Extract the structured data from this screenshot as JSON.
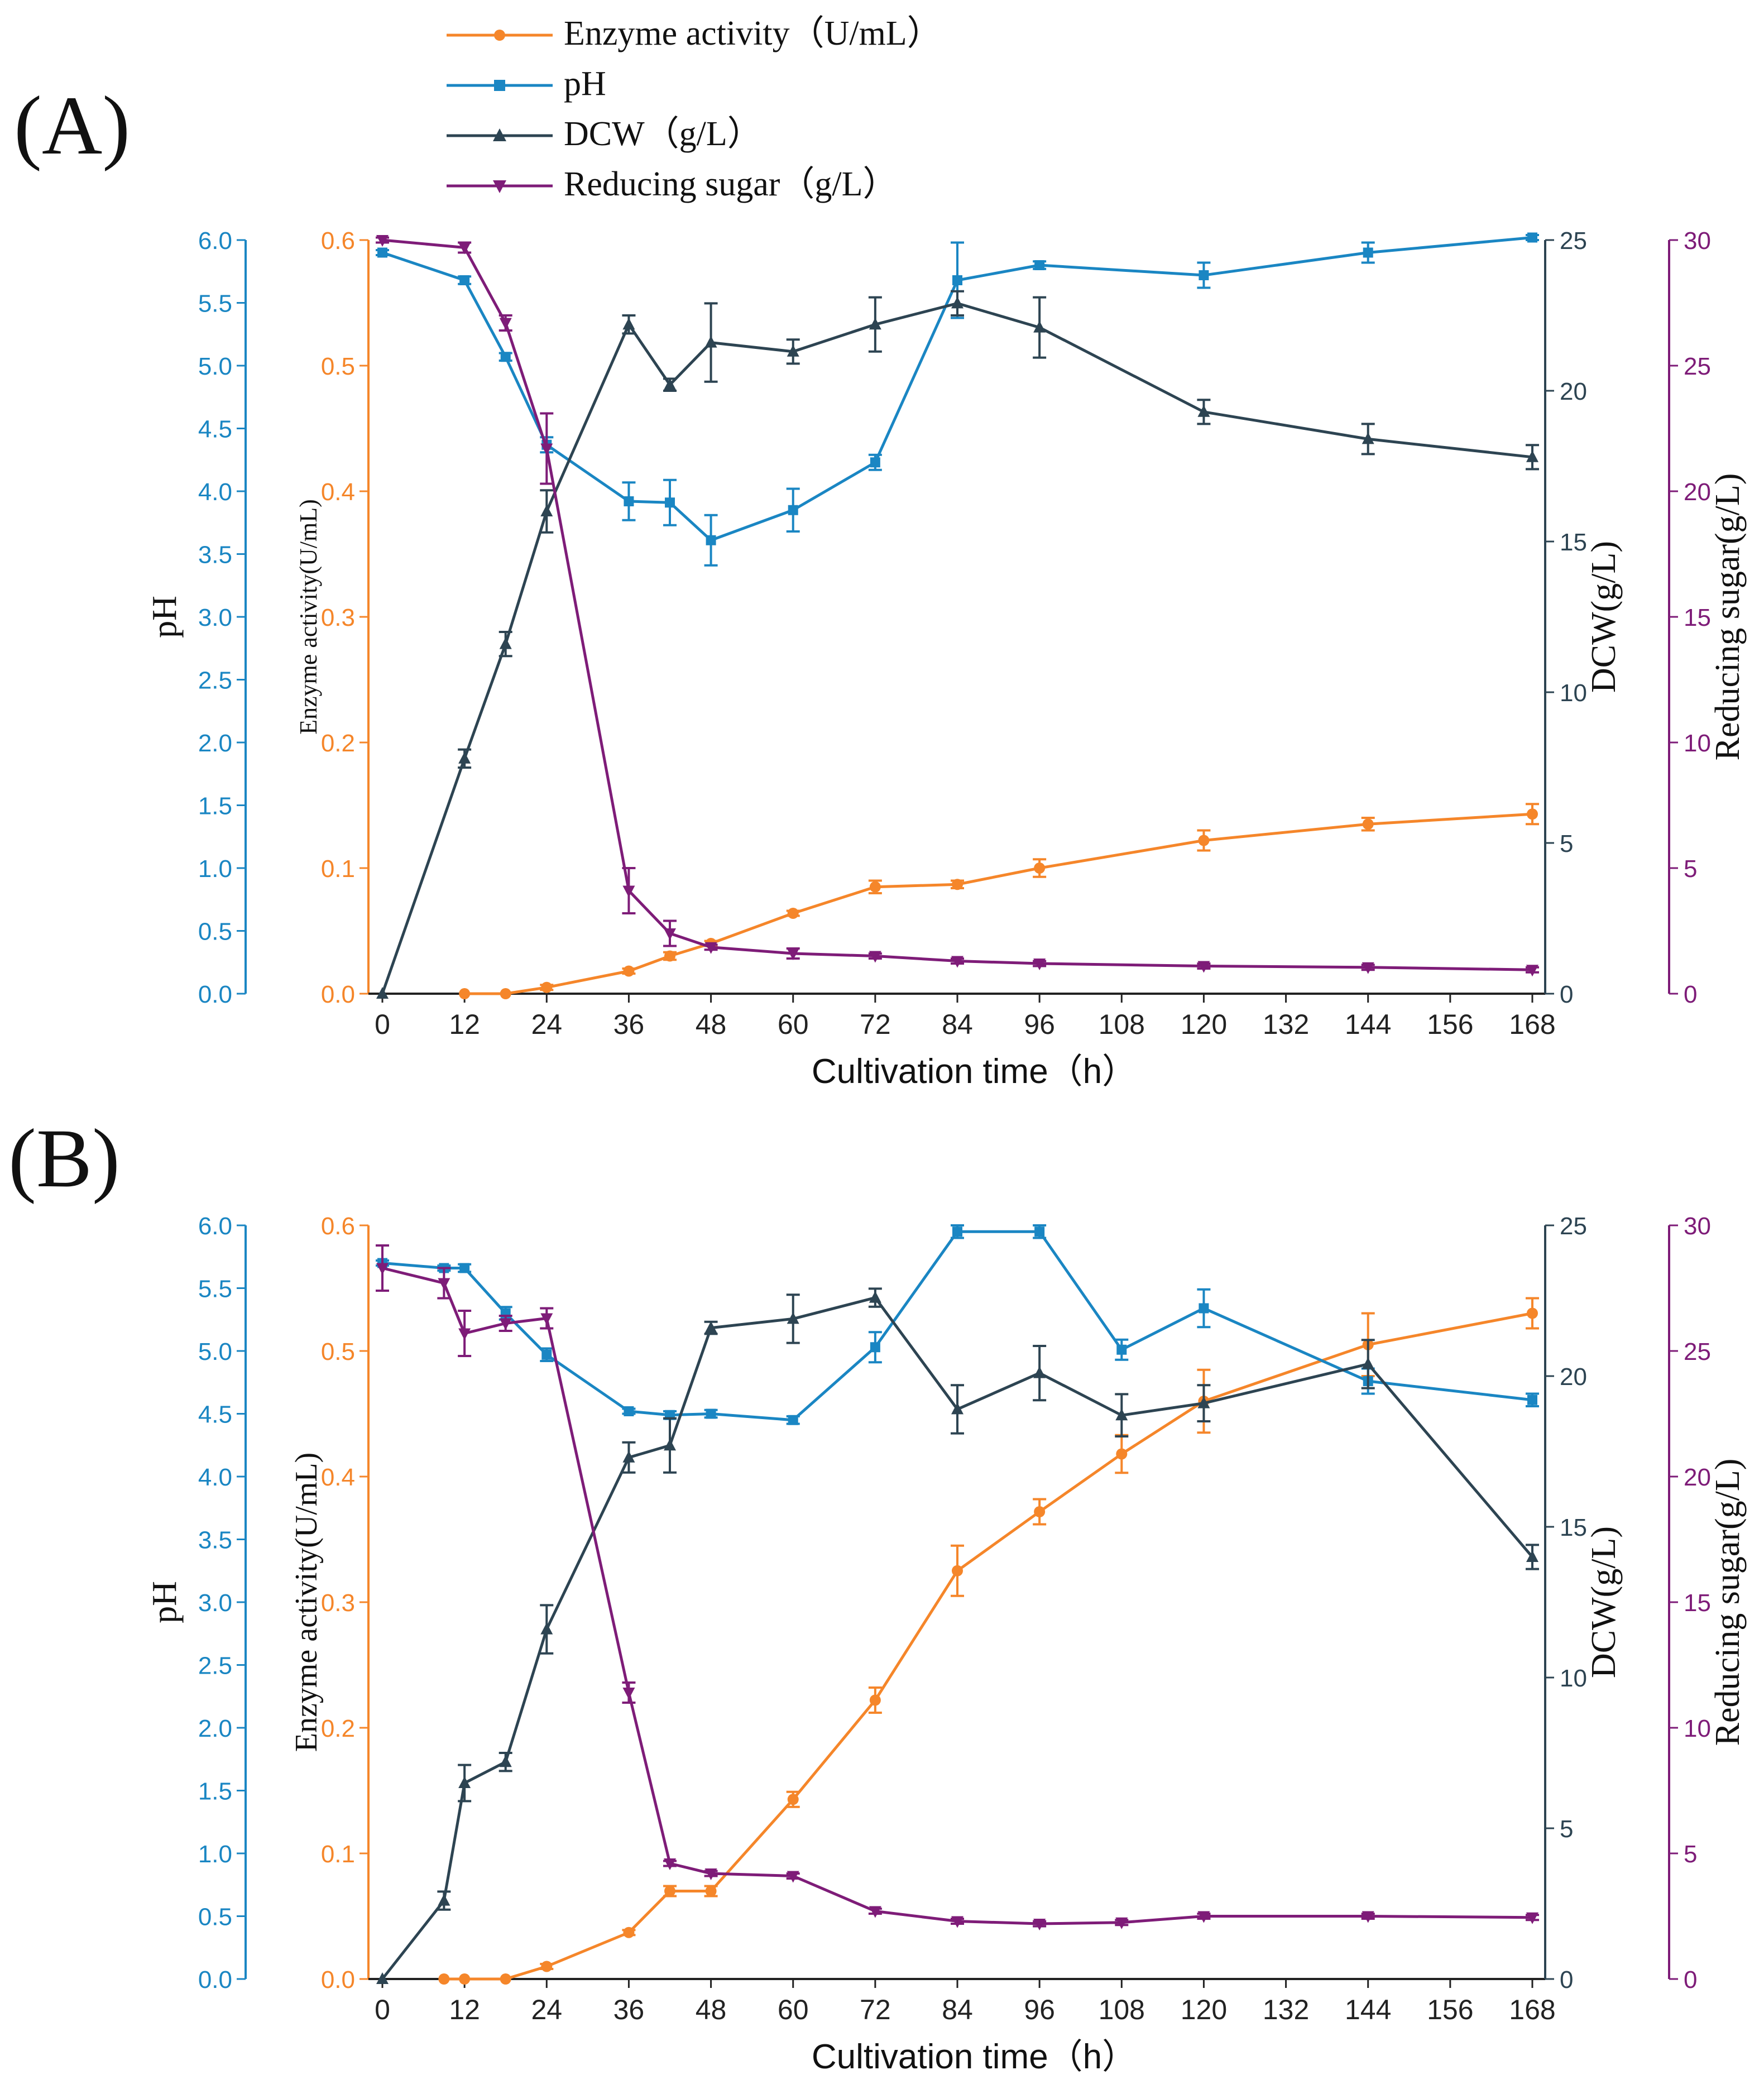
{
  "colors": {
    "enzyme": "#F5862A",
    "ph": "#1A86C3",
    "dcw": "#2D4452",
    "sugar": "#7E1C78"
  },
  "legend": {
    "enzyme": "Enzyme activity（U/mL）",
    "ph": "pH",
    "dcw": "DCW（g/L）",
    "sugar": "Reducing sugar（g/L）"
  },
  "chart_data": [
    {
      "panel_label": "(A)",
      "type": "line",
      "xlabel": "Cultivation time（h）",
      "xlim": [
        0,
        168
      ],
      "xticks": [
        0,
        12,
        24,
        36,
        48,
        60,
        72,
        84,
        96,
        108,
        120,
        132,
        144,
        156,
        168
      ],
      "axes": {
        "ph": {
          "label": "pH",
          "ylim": [
            0,
            6
          ],
          "ticks": [
            "0.0",
            "0.5",
            "1.0",
            "1.5",
            "2.0",
            "2.5",
            "3.0",
            "3.5",
            "4.0",
            "4.5",
            "5.0",
            "5.5",
            "6.0"
          ]
        },
        "enzyme": {
          "label": "Enzyme activity(U/mL)",
          "ylim": [
            0,
            0.6
          ],
          "ticks": [
            "0.0",
            "0.1",
            "0.2",
            "0.3",
            "0.4",
            "0.5",
            "0.6"
          ]
        },
        "dcw": {
          "label": "DCW(g/L)",
          "ylim": [
            0,
            25
          ],
          "ticks": [
            "0",
            "5",
            "10",
            "15",
            "20",
            "25"
          ]
        },
        "sugar": {
          "label": "Reducing sugar(g/L)",
          "ylim": [
            0,
            30
          ],
          "ticks": [
            "0",
            "5",
            "10",
            "15",
            "20",
            "25",
            "30"
          ]
        }
      },
      "series": [
        {
          "key": "enzyme",
          "name": "Enzyme activity",
          "marker": "circle",
          "x": [
            12,
            18,
            24,
            36,
            42,
            48,
            60,
            72,
            84,
            96,
            120,
            144,
            168
          ],
          "y": [
            0.0,
            0.0,
            0.005,
            0.018,
            0.03,
            0.04,
            0.064,
            0.085,
            0.087,
            0.1,
            0.122,
            0.135,
            0.143
          ],
          "err": [
            0,
            0,
            0.002,
            0.002,
            0.003,
            0.002,
            0.002,
            0.005,
            0.003,
            0.007,
            0.008,
            0.005,
            0.008
          ]
        },
        {
          "key": "ph",
          "name": "pH",
          "marker": "square",
          "x": [
            0,
            12,
            18,
            24,
            36,
            42,
            48,
            60,
            72,
            84,
            96,
            120,
            144,
            168
          ],
          "y": [
            5.9,
            5.68,
            5.07,
            4.37,
            3.92,
            3.91,
            3.61,
            3.85,
            4.23,
            5.68,
            5.8,
            5.72,
            5.9,
            6.02
          ],
          "err": [
            0.02,
            0.03,
            0.03,
            0.06,
            0.15,
            0.18,
            0.2,
            0.17,
            0.06,
            0.3,
            0.03,
            0.1,
            0.08,
            0.02
          ]
        },
        {
          "key": "dcw",
          "name": "DCW",
          "marker": "triangle",
          "x": [
            0,
            12,
            18,
            24,
            36,
            42,
            48,
            60,
            72,
            84,
            96,
            120,
            144,
            168
          ],
          "y": [
            0.0,
            7.8,
            11.6,
            16.0,
            22.2,
            20.2,
            21.6,
            21.3,
            22.2,
            22.9,
            22.1,
            19.3,
            18.4,
            17.8
          ],
          "err": [
            0,
            0.3,
            0.4,
            0.7,
            0.3,
            0.2,
            1.3,
            0.4,
            0.9,
            0.4,
            1.0,
            0.4,
            0.5,
            0.4
          ]
        },
        {
          "key": "sugar",
          "name": "Reducing sugar",
          "marker": "triangle-down",
          "x": [
            0,
            12,
            18,
            24,
            36,
            42,
            48,
            60,
            72,
            84,
            96,
            120,
            144,
            168
          ],
          "y": [
            30.0,
            29.7,
            26.7,
            21.7,
            4.1,
            2.4,
            1.85,
            1.6,
            1.5,
            1.3,
            1.2,
            1.1,
            1.05,
            0.95
          ],
          "err": [
            0.1,
            0.2,
            0.3,
            1.4,
            0.9,
            0.5,
            0.1,
            0.2,
            0.1,
            0.1,
            0.1,
            0.1,
            0.1,
            0.1
          ]
        }
      ]
    },
    {
      "panel_label": "(B)",
      "type": "line",
      "xlabel": "Cultivation time（h）",
      "xlim": [
        0,
        168
      ],
      "xticks": [
        0,
        12,
        24,
        36,
        48,
        60,
        72,
        84,
        96,
        108,
        120,
        132,
        144,
        156,
        168
      ],
      "axes": {
        "ph": {
          "label": "pH",
          "ylim": [
            0,
            6
          ],
          "ticks": [
            "0.0",
            "0.5",
            "1.0",
            "1.5",
            "2.0",
            "2.5",
            "3.0",
            "3.5",
            "4.0",
            "4.5",
            "5.0",
            "5.5",
            "6.0"
          ]
        },
        "enzyme": {
          "label": "Enzyme activity(U/mL)",
          "ylim": [
            0,
            0.6
          ],
          "ticks": [
            "0.0",
            "0.1",
            "0.2",
            "0.3",
            "0.4",
            "0.5",
            "0.6"
          ]
        },
        "dcw": {
          "label": "DCW(g/L)",
          "ylim": [
            0,
            25
          ],
          "ticks": [
            "0",
            "5",
            "10",
            "15",
            "20",
            "25"
          ]
        },
        "sugar": {
          "label": "Reducing sugar(g/L)",
          "ylim": [
            0,
            30
          ],
          "ticks": [
            "0",
            "5",
            "10",
            "15",
            "20",
            "25",
            "30"
          ]
        }
      },
      "series": [
        {
          "key": "enzyme",
          "name": "Enzyme activity",
          "marker": "circle",
          "x": [
            9,
            12,
            18,
            24,
            36,
            42,
            48,
            60,
            72,
            84,
            96,
            108,
            120,
            144,
            168
          ],
          "y": [
            0.0,
            0.0,
            0.0,
            0.01,
            0.037,
            0.07,
            0.07,
            0.143,
            0.222,
            0.325,
            0.372,
            0.418,
            0.46,
            0.505,
            0.53
          ],
          "err": [
            0,
            0,
            0,
            0.002,
            0.002,
            0.004,
            0.004,
            0.006,
            0.01,
            0.02,
            0.01,
            0.015,
            0.025,
            0.025,
            0.012
          ]
        },
        {
          "key": "ph",
          "name": "pH",
          "marker": "square",
          "x": [
            0,
            9,
            12,
            18,
            24,
            36,
            42,
            48,
            60,
            72,
            84,
            96,
            108,
            120,
            144,
            168
          ],
          "y": [
            5.7,
            5.66,
            5.66,
            5.3,
            4.97,
            4.52,
            4.49,
            4.5,
            4.45,
            5.03,
            5.95,
            5.95,
            5.01,
            5.34,
            4.76,
            4.61
          ],
          "err": [
            0.02,
            0.02,
            0.03,
            0.05,
            0.05,
            0.02,
            0.03,
            0.03,
            0.03,
            0.12,
            0.05,
            0.05,
            0.08,
            0.15,
            0.1,
            0.05
          ]
        },
        {
          "key": "dcw",
          "name": "DCW",
          "marker": "triangle",
          "x": [
            0,
            9,
            12,
            18,
            24,
            36,
            42,
            48,
            60,
            72,
            84,
            96,
            108,
            120,
            144,
            168
          ],
          "y": [
            0.0,
            2.6,
            6.5,
            7.2,
            11.6,
            17.3,
            17.7,
            21.6,
            21.9,
            22.6,
            18.9,
            20.1,
            18.7,
            19.1,
            20.4,
            14.0
          ],
          "err": [
            0,
            0.3,
            0.6,
            0.3,
            0.8,
            0.5,
            0.9,
            0.2,
            0.8,
            0.3,
            0.8,
            0.9,
            0.7,
            0.6,
            0.8,
            0.4
          ]
        },
        {
          "key": "sugar",
          "name": "Reducing sugar",
          "marker": "triangle-down",
          "x": [
            0,
            9,
            12,
            18,
            24,
            36,
            42,
            48,
            60,
            72,
            84,
            96,
            108,
            120,
            144,
            168
          ],
          "y": [
            28.3,
            27.7,
            25.7,
            26.1,
            26.3,
            11.4,
            4.6,
            4.2,
            4.1,
            2.7,
            2.3,
            2.2,
            2.25,
            2.5,
            2.5,
            2.45
          ],
          "err": [
            0.9,
            0.6,
            0.9,
            0.3,
            0.4,
            0.4,
            0.1,
            0.1,
            0.1,
            0.1,
            0.1,
            0.1,
            0.1,
            0.1,
            0.1,
            0.1
          ]
        }
      ]
    }
  ]
}
